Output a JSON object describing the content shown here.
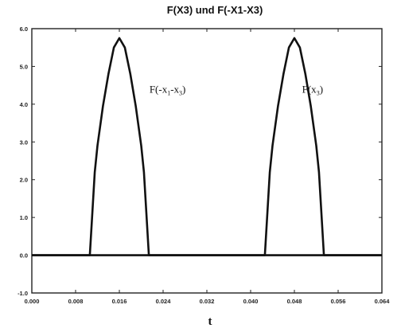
{
  "chart_data": {
    "type": "line",
    "title": "F(X3)  und  F(-X1-X3)",
    "xlabel": "t",
    "ylabel": "",
    "xlim": [
      0.0,
      0.064
    ],
    "ylim": [
      -1.0,
      6.0
    ],
    "x_ticks": [
      "0.000",
      "0.008",
      "0.016",
      "0.024",
      "0.032",
      "0.040",
      "0.048",
      "0.056",
      "0.064"
    ],
    "y_ticks": [
      "-1.0",
      "0.0",
      "1.0",
      "2.0",
      "3.0",
      "4.0",
      "5.0",
      "6.0"
    ],
    "grid": false,
    "series": [
      {
        "name": "F(-x1-x3)",
        "x": [
          0.0,
          0.0106,
          0.0115,
          0.012,
          0.013,
          0.014,
          0.015,
          0.016,
          0.017,
          0.018,
          0.019,
          0.02,
          0.0205,
          0.0214,
          0.064
        ],
        "y": [
          0.0,
          0.0,
          2.2,
          2.9,
          3.95,
          4.8,
          5.5,
          5.75,
          5.5,
          4.8,
          3.95,
          2.9,
          2.2,
          0.0,
          0.0
        ]
      },
      {
        "name": "F(x3)",
        "x": [
          0.0,
          0.0426,
          0.0435,
          0.044,
          0.045,
          0.046,
          0.047,
          0.048,
          0.049,
          0.05,
          0.051,
          0.052,
          0.0525,
          0.0534,
          0.064
        ],
        "y": [
          0.0,
          0.0,
          2.2,
          2.9,
          3.95,
          4.8,
          5.5,
          5.75,
          5.5,
          4.8,
          3.95,
          2.9,
          2.2,
          0.0,
          0.0
        ]
      }
    ],
    "annotations": [
      {
        "main": "F(-x",
        "sub1": "1",
        "mid": "-x",
        "sub2": "3",
        "end": ")",
        "x": 0.0215,
        "y": 4.3
      },
      {
        "main": "F(x",
        "sub1": "3",
        "mid": "",
        "sub2": "",
        "end": ")",
        "x": 0.0494,
        "y": 4.3
      }
    ]
  }
}
